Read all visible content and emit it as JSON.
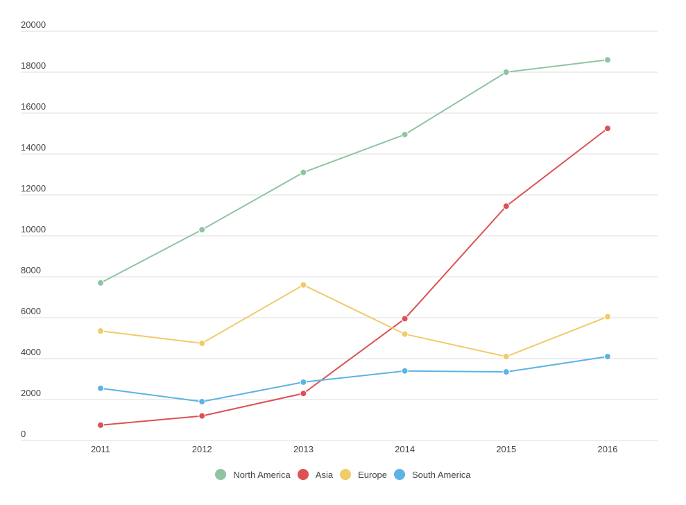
{
  "chart_data": {
    "type": "line",
    "title": "",
    "xlabel": "",
    "ylabel": "",
    "x": [
      "2011",
      "2012",
      "2013",
      "2014",
      "2015",
      "2016"
    ],
    "ylim": [
      0,
      20000
    ],
    "yticks": [
      "0",
      "2000",
      "4000",
      "6000",
      "8000",
      "10000",
      "12000",
      "14000",
      "16000",
      "18000",
      "20000"
    ],
    "grid": true,
    "legend_position": "bottom",
    "series": [
      {
        "name": "North America",
        "color": "#8fc4a3",
        "values": [
          7700,
          10300,
          13100,
          14950,
          18000,
          18600
        ]
      },
      {
        "name": "Asia",
        "color": "#dc5154",
        "values": [
          750,
          1200,
          2300,
          5950,
          11450,
          15250
        ]
      },
      {
        "name": "Europe",
        "color": "#f0cb69",
        "values": [
          5350,
          4750,
          7600,
          5200,
          4100,
          6050
        ]
      },
      {
        "name": "South America",
        "color": "#5db3e4",
        "values": [
          2550,
          1900,
          2850,
          3400,
          3350,
          4100
        ]
      }
    ]
  }
}
